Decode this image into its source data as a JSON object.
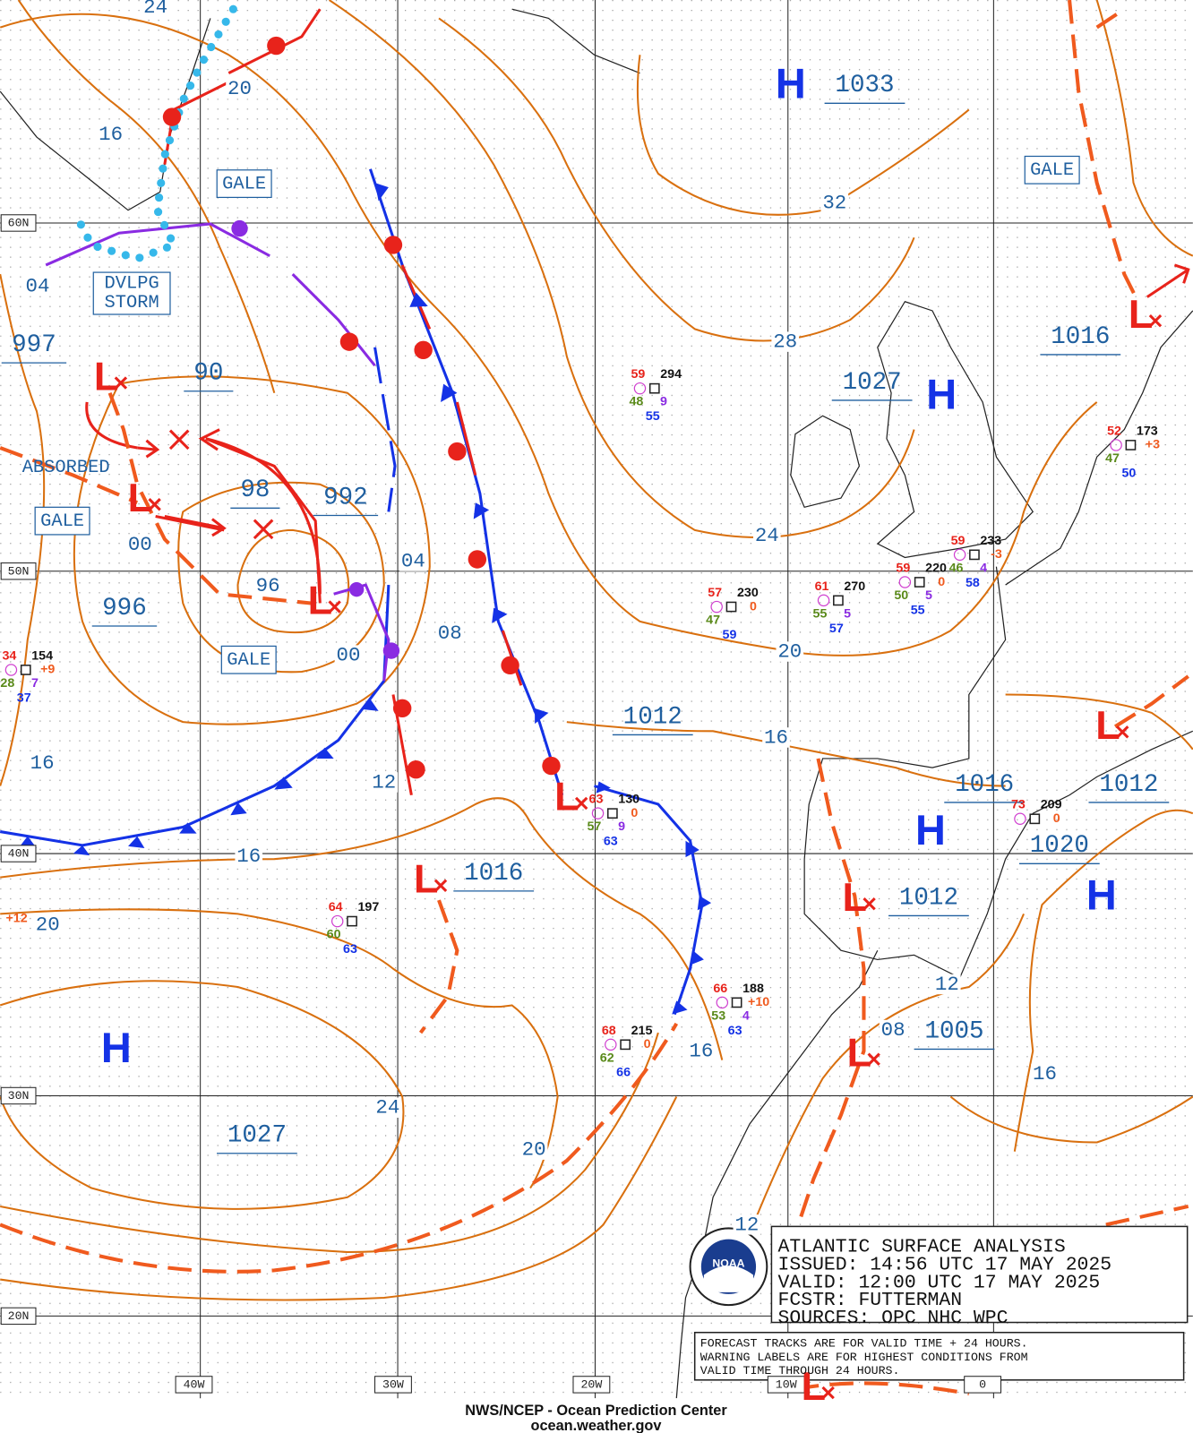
{
  "lat_labels": [
    "60N",
    "50N",
    "40N",
    "30N",
    "20N"
  ],
  "lon_labels": [
    "40W",
    "30W",
    "20W",
    "10W",
    "0"
  ],
  "highs": [
    "H",
    "H",
    "H",
    "H",
    "H"
  ],
  "lows": [
    "L",
    "L",
    "L",
    "L",
    "L",
    "L",
    "L",
    "L",
    "L",
    "L"
  ],
  "center_pressures": [
    "1033",
    "1027",
    "1016",
    "997",
    "90",
    "98",
    "992",
    "996",
    "1012",
    "1016",
    "1012",
    "1020",
    "1016",
    "1012",
    "1005",
    "1027"
  ],
  "isobar_labels": [
    "24",
    "20",
    "16",
    "32",
    "04",
    "28",
    "24",
    "00",
    "96",
    "04",
    "08",
    "00",
    "20",
    "16",
    "16",
    "12",
    "16",
    "20",
    "12",
    "08",
    "16",
    "16",
    "24",
    "20",
    "12"
  ],
  "warnings": [
    "GALE",
    "GALE",
    "GALE",
    "GALE"
  ],
  "storm_warning": [
    "DVLPG",
    "STORM"
  ],
  "absorbed": "ABSORBED",
  "stations": [
    {
      "t": "59",
      "p": "294",
      "d": "48",
      "v": "9",
      "s": "55"
    },
    {
      "t": "52",
      "p": "173",
      "d": "47",
      "s": "50",
      "tend": "+3"
    },
    {
      "t": "59",
      "p": "233",
      "d": "46",
      "v": "4",
      "s": "58",
      "tend": "-3"
    },
    {
      "t": "59",
      "p": "220",
      "d": "50",
      "v": "5",
      "s": "55",
      "tend": "0"
    },
    {
      "t": "61",
      "p": "270",
      "d": "55",
      "v": "5",
      "s": "57"
    },
    {
      "t": "57",
      "p": "230",
      "d": "47",
      "s": "59",
      "tend": "0"
    },
    {
      "t": "34",
      "p": "154",
      "d": "28",
      "v": "7",
      "s": "37",
      "tend": "+9"
    },
    {
      "t": "63",
      "p": "130",
      "d": "57",
      "v": "9",
      "s": "63",
      "tend": "0"
    },
    {
      "t": "73",
      "p": "209",
      "tend": "0"
    },
    {
      "t": "64",
      "p": "197",
      "d": "60",
      "s": "63"
    },
    {
      "t": "66",
      "p": "188",
      "d": "53",
      "v": "4",
      "s": "63",
      "tend": "+10"
    },
    {
      "t": "68",
      "p": "215",
      "d": "62",
      "s": "66",
      "tend": "0"
    }
  ],
  "edge_tendency": "+12",
  "info_box": [
    "ATLANTIC SURFACE ANALYSIS",
    "ISSUED:  14:56 UTC 17 MAY 2025",
    "VALID:  12:00 UTC 17 MAY 2025",
    "FCSTR:  FUTTERMAN",
    "SOURCES: OPC NHC WPC"
  ],
  "note_box": [
    "FORECAST TRACKS ARE FOR VALID TIME + 24 HOURS.",
    "WARNING LABELS ARE FOR HIGHEST CONDITIONS FROM",
    "VALID TIME THROUGH 24 HOURS."
  ],
  "logo": "NOAA",
  "footer": [
    "NWS/NCEP - Ocean Prediction Center",
    "ocean.weather.gov"
  ]
}
